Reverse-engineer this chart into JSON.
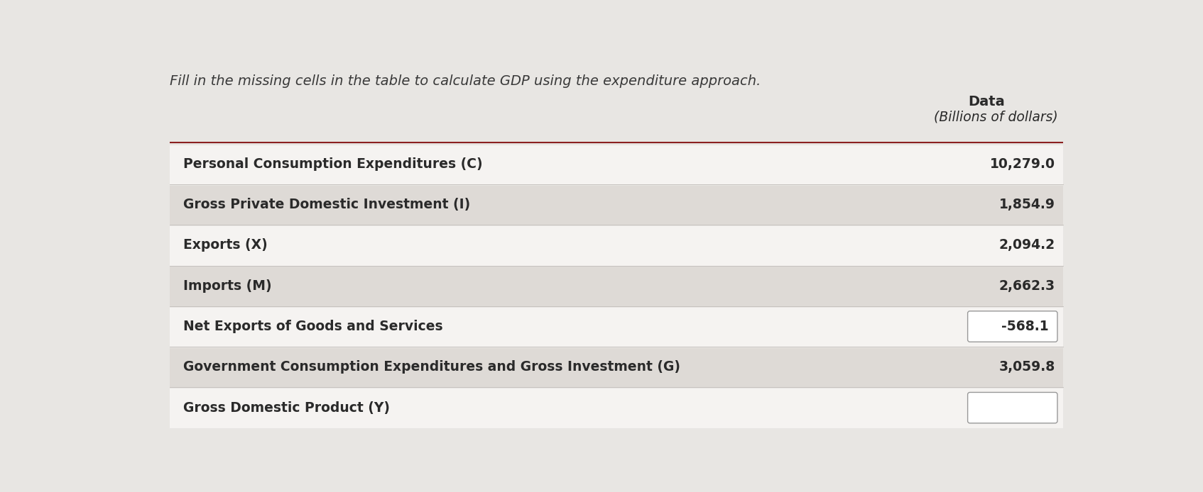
{
  "title": "Fill in the missing cells in the table to calculate GDP using the expenditure approach.",
  "col_header_1": "Data",
  "col_header_2": "(Billions of dollars)",
  "rows": [
    {
      "label": "Personal Consumption Expenditures (C)",
      "value": "10,279.0",
      "boxed": false,
      "shaded": false
    },
    {
      "label": "Gross Private Domestic Investment (I)",
      "value": "1,854.9",
      "boxed": false,
      "shaded": true
    },
    {
      "label": "Exports (X)",
      "value": "2,094.2",
      "boxed": false,
      "shaded": false
    },
    {
      "label": "Imports (M)",
      "value": "2,662.3",
      "boxed": false,
      "shaded": true
    },
    {
      "label": "Net Exports of Goods and Services",
      "value": "-568.1",
      "boxed": true,
      "shaded": false
    },
    {
      "label": "Government Consumption Expenditures and Gross Investment (G)",
      "value": "3,059.8",
      "boxed": false,
      "shaded": true
    },
    {
      "label": "Gross Domestic Product (Y)",
      "value": "",
      "boxed": true,
      "shaded": false
    }
  ],
  "bg_color": "#e8e6e3",
  "row_light": "#f5f3f1",
  "row_shaded": "#dedad6",
  "box_color": "#ffffff",
  "box_border": "#999999",
  "header_line_color": "#8B2020",
  "text_color": "#2a2a2a",
  "title_color": "#3a3a3a",
  "label_font_size": 13.5,
  "value_font_size": 13.5,
  "header_font_size": 14,
  "title_font_size": 14
}
